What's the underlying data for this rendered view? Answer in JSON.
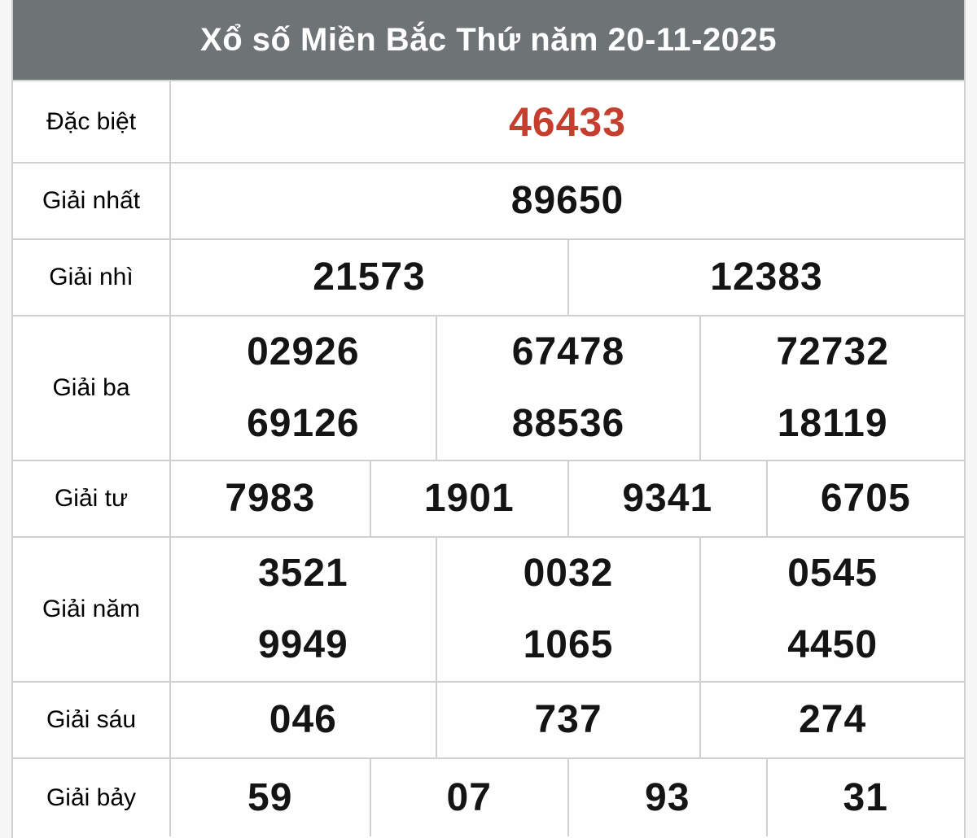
{
  "header": {
    "title": "Xổ số Miền Bắc Thứ năm 20-11-2025"
  },
  "colors": {
    "header_bg": "#6e7376",
    "header_fg": "#ffffff",
    "special_number": "#c53e2e",
    "number": "#141414",
    "border": "#d0d0d0",
    "page_bg": "#f7f7f7",
    "cell_bg": "#fefefe"
  },
  "rows": [
    {
      "label": "Đặc biệt",
      "special": true,
      "lines": [
        [
          "46433"
        ]
      ]
    },
    {
      "label": "Giải nhất",
      "special": false,
      "lines": [
        [
          "89650"
        ]
      ]
    },
    {
      "label": "Giải nhì",
      "special": false,
      "lines": [
        [
          "21573",
          "12383"
        ]
      ]
    },
    {
      "label": "Giải ba",
      "special": false,
      "lines": [
        [
          "02926",
          "67478",
          "72732"
        ],
        [
          "69126",
          "88536",
          "18119"
        ]
      ]
    },
    {
      "label": "Giải tư",
      "special": false,
      "lines": [
        [
          "7983",
          "1901",
          "9341",
          "6705"
        ]
      ]
    },
    {
      "label": "Giải năm",
      "special": false,
      "lines": [
        [
          "3521",
          "0032",
          "0545"
        ],
        [
          "9949",
          "1065",
          "4450"
        ]
      ]
    },
    {
      "label": "Giải sáu",
      "special": false,
      "lines": [
        [
          "046",
          "737",
          "274"
        ]
      ]
    },
    {
      "label": "Giải bảy",
      "special": false,
      "lines": [
        [
          "59",
          "07",
          "93",
          "31"
        ]
      ]
    }
  ]
}
